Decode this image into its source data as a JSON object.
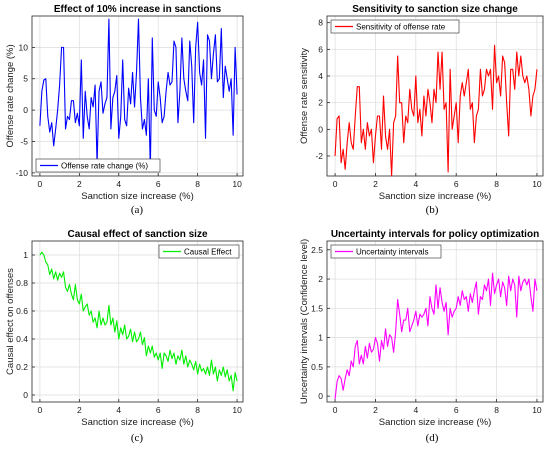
{
  "chart_data": [
    {
      "id": "a",
      "type": "line",
      "title": "Effect of 10% increase in sanctions",
      "xlabel": "Sanction size increase (%)",
      "ylabel": "Offense rate change (%)",
      "xlim": [
        -0.4,
        10.3
      ],
      "ylim": [
        -10.5,
        15
      ],
      "xticks": [
        0,
        2,
        4,
        6,
        8,
        10
      ],
      "yticks": [
        -10,
        -5,
        0,
        5,
        10
      ],
      "grid": true,
      "legend_position": "bottom-left",
      "panel_label": "(a)",
      "series": [
        {
          "name": "Offense rate change (%)",
          "color": "#0000ff",
          "x": [
            0,
            0.1,
            0.2,
            0.3,
            0.4,
            0.5,
            0.6,
            0.7,
            0.8,
            0.9,
            1,
            1.1,
            1.2,
            1.3,
            1.4,
            1.5,
            1.6,
            1.7,
            1.8,
            1.9,
            2,
            2.1,
            2.2,
            2.3,
            2.4,
            2.5,
            2.6,
            2.7,
            2.8,
            2.9,
            3,
            3.1,
            3.2,
            3.3,
            3.4,
            3.5,
            3.6,
            3.7,
            3.8,
            3.9,
            4,
            4.1,
            4.2,
            4.3,
            4.4,
            4.5,
            4.6,
            4.7,
            4.8,
            4.9,
            5,
            5.1,
            5.2,
            5.3,
            5.4,
            5.5,
            5.6,
            5.7,
            5.8,
            5.9,
            6,
            6.1,
            6.2,
            6.3,
            6.4,
            6.5,
            6.6,
            6.7,
            6.8,
            6.9,
            7,
            7.1,
            7.2,
            7.3,
            7.4,
            7.5,
            7.6,
            7.7,
            7.8,
            7.9,
            8,
            8.1,
            8.2,
            8.3,
            8.4,
            8.5,
            8.6,
            8.7,
            8.8,
            8.9,
            9,
            9.1,
            9.2,
            9.3,
            9.4,
            9.5,
            9.6,
            9.7,
            9.8,
            9.9,
            10
          ],
          "values": [
            -2.5,
            3,
            4.8,
            5,
            -1,
            -3.5,
            -2,
            -5.7,
            -3,
            0,
            4,
            10,
            10,
            -3,
            -1,
            -1.5,
            1.5,
            1.5,
            -2,
            -0.5,
            -2.5,
            8,
            -4.5,
            3,
            -1,
            -3,
            2,
            0.5,
            4,
            -8.5,
            3,
            4.5,
            -0.5,
            1,
            2,
            14.5,
            -3,
            2,
            3,
            5.5,
            -4.5,
            -1,
            8,
            -1.5,
            -2.5,
            3.5,
            1,
            6,
            0.5,
            6,
            14.5,
            2,
            -3,
            -1.5,
            -4,
            5,
            -9.5,
            11.5,
            0,
            -1,
            4.5,
            2,
            -2,
            -1,
            3,
            6,
            4,
            4.5,
            11,
            10,
            -2,
            3,
            11.5,
            5,
            3,
            1.5,
            11,
            7,
            -2,
            10,
            14,
            6,
            4,
            8,
            -4.5,
            12,
            11,
            5,
            9,
            12,
            4.5,
            5,
            13,
            2,
            7,
            5,
            3,
            5,
            -4,
            10,
            2.5
          ]
        }
      ]
    },
    {
      "id": "b",
      "type": "line",
      "title": "Sensitivity to sanction size change",
      "xlabel": "Sanction size increase (%)",
      "ylabel": "Offense rate sensitivity",
      "xlim": [
        -0.4,
        10.3
      ],
      "ylim": [
        -3.5,
        8.5
      ],
      "xticks": [
        0,
        2,
        4,
        6,
        8,
        10
      ],
      "yticks": [
        -2,
        0,
        2,
        4,
        6,
        8
      ],
      "grid": true,
      "legend_position": "top-left",
      "panel_label": "(b)",
      "series": [
        {
          "name": "Sensitivity of offense rate",
          "color": "#ff0000",
          "x": [
            0,
            0.1,
            0.2,
            0.3,
            0.4,
            0.5,
            0.6,
            0.7,
            0.8,
            0.9,
            1,
            1.1,
            1.2,
            1.3,
            1.4,
            1.5,
            1.6,
            1.7,
            1.8,
            1.9,
            2,
            2.1,
            2.2,
            2.3,
            2.4,
            2.5,
            2.6,
            2.7,
            2.8,
            2.9,
            3,
            3.1,
            3.2,
            3.3,
            3.4,
            3.5,
            3.6,
            3.7,
            3.8,
            3.9,
            4,
            4.1,
            4.2,
            4.3,
            4.4,
            4.5,
            4.6,
            4.7,
            4.8,
            4.9,
            5,
            5.1,
            5.2,
            5.3,
            5.4,
            5.5,
            5.6,
            5.7,
            5.8,
            5.9,
            6,
            6.1,
            6.2,
            6.3,
            6.4,
            6.5,
            6.6,
            6.7,
            6.8,
            6.9,
            7,
            7.1,
            7.2,
            7.3,
            7.4,
            7.5,
            7.6,
            7.7,
            7.8,
            7.9,
            8,
            8.1,
            8.2,
            8.3,
            8.4,
            8.5,
            8.6,
            8.7,
            8.8,
            8.9,
            9,
            9.1,
            9.2,
            9.3,
            9.4,
            9.5,
            9.6,
            9.7,
            9.8,
            9.9,
            10
          ],
          "values": [
            -2,
            0.8,
            1,
            -2.5,
            -1.5,
            -3,
            -1,
            0.5,
            -1,
            -1.5,
            1,
            3.2,
            3.2,
            -1,
            0,
            -1.5,
            0.5,
            -0.5,
            0,
            -2.5,
            -0.5,
            1,
            1,
            -1.5,
            2.5,
            -0.5,
            -1.5,
            0,
            -3.5,
            0.5,
            1,
            5.5,
            2,
            2,
            -1,
            1,
            0.5,
            3,
            1.5,
            1,
            4,
            0.5,
            1.5,
            -0.5,
            2.5,
            1,
            3,
            2,
            0.5,
            3,
            2,
            5.8,
            3,
            5.8,
            1.5,
            2,
            -3.2,
            4.5,
            0,
            1,
            2,
            -1,
            2.5,
            3.5,
            2.5,
            3.5,
            4.5,
            1.5,
            2,
            -1,
            1,
            1.5,
            4.5,
            2.5,
            3,
            4.5,
            4,
            4.5,
            1.5,
            6.3,
            3.5,
            4,
            2.5,
            5.5,
            5,
            2,
            -0.5,
            4.5,
            4.5,
            3,
            5.8,
            4,
            5.5,
            4,
            3.5,
            4,
            3,
            1,
            2.5,
            3,
            4.5
          ]
        }
      ]
    },
    {
      "id": "c",
      "type": "line",
      "title": "Causal effect of sanction size",
      "xlabel": "Sanction size increase (%)",
      "ylabel": "Causal effect on offenses",
      "xlim": [
        -0.4,
        10.3
      ],
      "ylim": [
        -0.05,
        1.1
      ],
      "xticks": [
        0,
        2,
        4,
        6,
        8,
        10
      ],
      "yticks": [
        0,
        0.2,
        0.4,
        0.6,
        0.8,
        1
      ],
      "grid": true,
      "legend_position": "top-right",
      "panel_label": "(c)",
      "series": [
        {
          "name": "Causal Effect",
          "color": "#00ee00",
          "x": [
            0,
            0.1,
            0.2,
            0.3,
            0.4,
            0.5,
            0.6,
            0.7,
            0.8,
            0.9,
            1,
            1.1,
            1.2,
            1.3,
            1.4,
            1.5,
            1.6,
            1.7,
            1.8,
            1.9,
            2,
            2.1,
            2.2,
            2.3,
            2.4,
            2.5,
            2.6,
            2.7,
            2.8,
            2.9,
            3,
            3.1,
            3.2,
            3.3,
            3.4,
            3.5,
            3.6,
            3.7,
            3.8,
            3.9,
            4,
            4.1,
            4.2,
            4.3,
            4.4,
            4.5,
            4.6,
            4.7,
            4.8,
            4.9,
            5,
            5.1,
            5.2,
            5.3,
            5.4,
            5.5,
            5.6,
            5.7,
            5.8,
            5.9,
            6,
            6.1,
            6.2,
            6.3,
            6.4,
            6.5,
            6.6,
            6.7,
            6.8,
            6.9,
            7,
            7.1,
            7.2,
            7.3,
            7.4,
            7.5,
            7.6,
            7.7,
            7.8,
            7.9,
            8,
            8.1,
            8.2,
            8.3,
            8.4,
            8.5,
            8.6,
            8.7,
            8.8,
            8.9,
            9,
            9.1,
            9.2,
            9.3,
            9.4,
            9.5,
            9.6,
            9.7,
            9.8,
            9.9,
            10
          ],
          "values": [
            1,
            1.02,
            1,
            0.95,
            0.93,
            0.86,
            0.9,
            0.83,
            0.88,
            0.82,
            0.87,
            0.84,
            0.88,
            0.77,
            0.74,
            0.79,
            0.72,
            0.68,
            0.79,
            0.68,
            0.65,
            0.72,
            0.6,
            0.63,
            0.65,
            0.57,
            0.6,
            0.52,
            0.55,
            0.48,
            0.6,
            0.5,
            0.55,
            0.5,
            0.52,
            0.64,
            0.5,
            0.55,
            0.45,
            0.53,
            0.4,
            0.48,
            0.43,
            0.5,
            0.4,
            0.42,
            0.47,
            0.38,
            0.45,
            0.38,
            0.4,
            0.45,
            0.36,
            0.41,
            0.28,
            0.35,
            0.3,
            0.35,
            0.27,
            0.3,
            0.25,
            0.3,
            0.19,
            0.3,
            0.28,
            0.24,
            0.32,
            0.26,
            0.3,
            0.22,
            0.28,
            0.25,
            0.32,
            0.22,
            0.28,
            0.2,
            0.25,
            0.22,
            0.18,
            0.24,
            0.15,
            0.22,
            0.17,
            0.19,
            0.15,
            0.2,
            0.14,
            0.25,
            0.15,
            0.2,
            0.1,
            0.18,
            0.14,
            0.2,
            0.13,
            0.18,
            0.1,
            0.14,
            0.03,
            0.16,
            0.1
          ]
        }
      ]
    },
    {
      "id": "d",
      "type": "line",
      "title": "Uncertainty intervals for policy optimization",
      "xlabel": "Sanction size increase (%)",
      "ylabel": "Uncertainty intervals (Confidence level)",
      "xlim": [
        -0.4,
        10.3
      ],
      "ylim": [
        -0.1,
        2.65
      ],
      "xticks": [
        0,
        2,
        4,
        6,
        8,
        10
      ],
      "yticks": [
        0,
        0.5,
        1,
        1.5,
        2,
        2.5
      ],
      "grid": true,
      "legend_position": "top-left",
      "panel_label": "(d)",
      "series": [
        {
          "name": "Uncertainty intervals",
          "color": "#ff00ff",
          "x": [
            0,
            0.1,
            0.2,
            0.3,
            0.4,
            0.5,
            0.6,
            0.7,
            0.8,
            0.9,
            1,
            1.1,
            1.2,
            1.3,
            1.4,
            1.5,
            1.6,
            1.7,
            1.8,
            1.9,
            2,
            2.1,
            2.2,
            2.3,
            2.4,
            2.5,
            2.6,
            2.7,
            2.8,
            2.9,
            3,
            3.1,
            3.2,
            3.3,
            3.4,
            3.5,
            3.6,
            3.7,
            3.8,
            3.9,
            4,
            4.1,
            4.2,
            4.3,
            4.4,
            4.5,
            4.6,
            4.7,
            4.8,
            4.9,
            5,
            5.1,
            5.2,
            5.3,
            5.4,
            5.5,
            5.6,
            5.7,
            5.8,
            5.9,
            6,
            6.1,
            6.2,
            6.3,
            6.4,
            6.5,
            6.6,
            6.7,
            6.8,
            6.9,
            7,
            7.1,
            7.2,
            7.3,
            7.4,
            7.5,
            7.6,
            7.7,
            7.8,
            7.9,
            8,
            8.1,
            8.2,
            8.3,
            8.4,
            8.5,
            8.6,
            8.7,
            8.8,
            8.9,
            9,
            9.1,
            9.2,
            9.3,
            9.4,
            9.5,
            9.6,
            9.7,
            9.8,
            9.9,
            10
          ],
          "values": [
            -0.05,
            0.25,
            0.35,
            0.3,
            0.1,
            0.3,
            0.45,
            0.35,
            0.6,
            0.5,
            0.85,
            0.95,
            0.55,
            0.7,
            0.55,
            0.85,
            0.65,
            0.9,
            0.75,
            0.8,
            1,
            0.9,
            0.6,
            0.95,
            0.8,
            1.15,
            0.85,
            1.05,
            1,
            0.75,
            1.1,
            1.65,
            1.4,
            1.1,
            1.3,
            1.3,
            1.5,
            1.1,
            1.2,
            1.3,
            1.45,
            1.2,
            1.4,
            1.35,
            1.4,
            1.5,
            1.2,
            1.7,
            1.5,
            1.4,
            1.9,
            1.5,
            1.85,
            1.6,
            1.45,
            1.6,
            1.05,
            1.5,
            1.35,
            1.45,
            1.5,
            1.7,
            1.55,
            1.8,
            1.65,
            1.7,
            1.45,
            1.75,
            1.6,
            1.8,
            1.95,
            1.4,
            1.7,
            1.65,
            1.9,
            1.8,
            2,
            1.55,
            2.1,
            1.75,
            1.9,
            2,
            1.7,
            1.95,
            1.85,
            1.55,
            2.05,
            1.8,
            2,
            1.9,
            1.35,
            2.05,
            1.8,
            1.95,
            2,
            1.9,
            2,
            1.7,
            1.45,
            2,
            1.8
          ]
        }
      ]
    }
  ]
}
